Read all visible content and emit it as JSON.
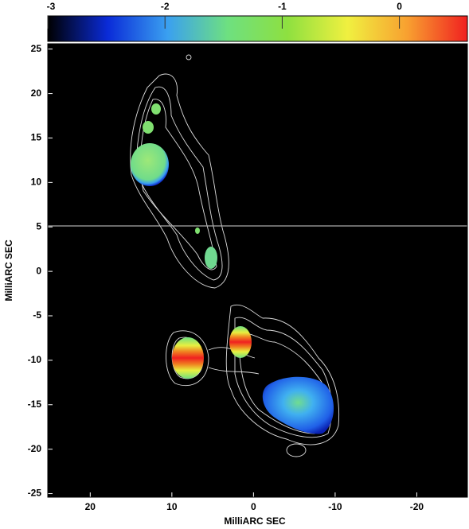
{
  "chart_data": {
    "type": "image",
    "xlabel": "MilliARC SEC",
    "ylabel": "MilliARC SEC",
    "xlim": [
      25.2,
      -26.2
    ],
    "xticks": [
      20,
      10,
      0,
      -10,
      -20
    ],
    "ylim": [
      -25.4,
      25.6
    ],
    "yticks": [
      25,
      20,
      15,
      10,
      5,
      0,
      -5,
      -10,
      -15,
      -20,
      -25
    ],
    "colorbar": {
      "lim": [
        -3,
        0.58
      ],
      "ticks": [
        -3,
        -2,
        -1,
        0
      ],
      "colormap": [
        "#000000",
        "#0a2bd8",
        "#3aa0f0",
        "#6ee080",
        "#8ee040",
        "#f0f040",
        "#f8a030",
        "#f02020"
      ]
    }
  }
}
